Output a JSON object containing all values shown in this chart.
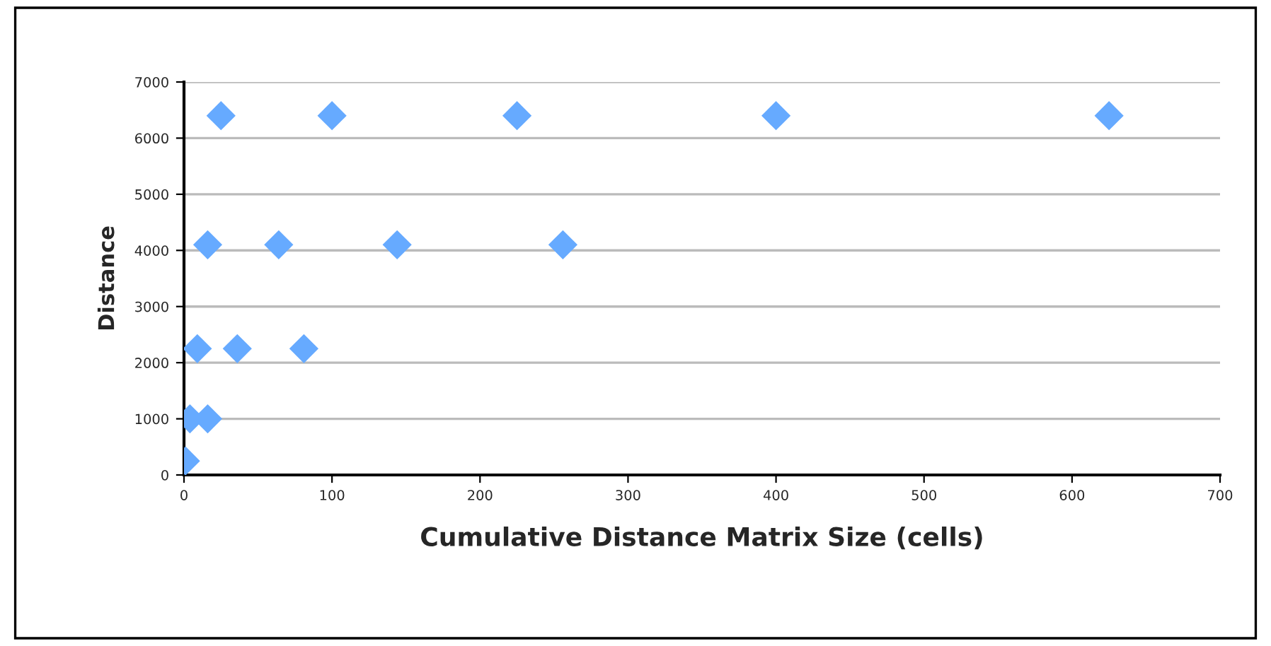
{
  "chart_data": {
    "type": "scatter",
    "xlabel": "Cumulative Distance Matrix Size (cells)",
    "ylabel": "Distance",
    "x": [
      1,
      4,
      16,
      9,
      36,
      81,
      16,
      64,
      144,
      256,
      25,
      100,
      225,
      400,
      625
    ],
    "series": [
      {
        "color": "#66aaff",
        "values": [
          250,
          1000,
          1000,
          2250,
          2250,
          2250,
          4100,
          4100,
          4100,
          4100,
          6400,
          6400,
          6400,
          6400,
          6400
        ]
      }
    ],
    "xlim": [
      0,
      700
    ],
    "xticks": [
      0,
      100,
      200,
      300,
      400,
      500,
      600,
      700
    ],
    "ylim": [
      0,
      7000
    ],
    "yticks": [
      0,
      1000,
      2000,
      3000,
      4000,
      5000,
      6000,
      7000
    ],
    "grid": "y",
    "marker": "diamond",
    "legend": false
  }
}
